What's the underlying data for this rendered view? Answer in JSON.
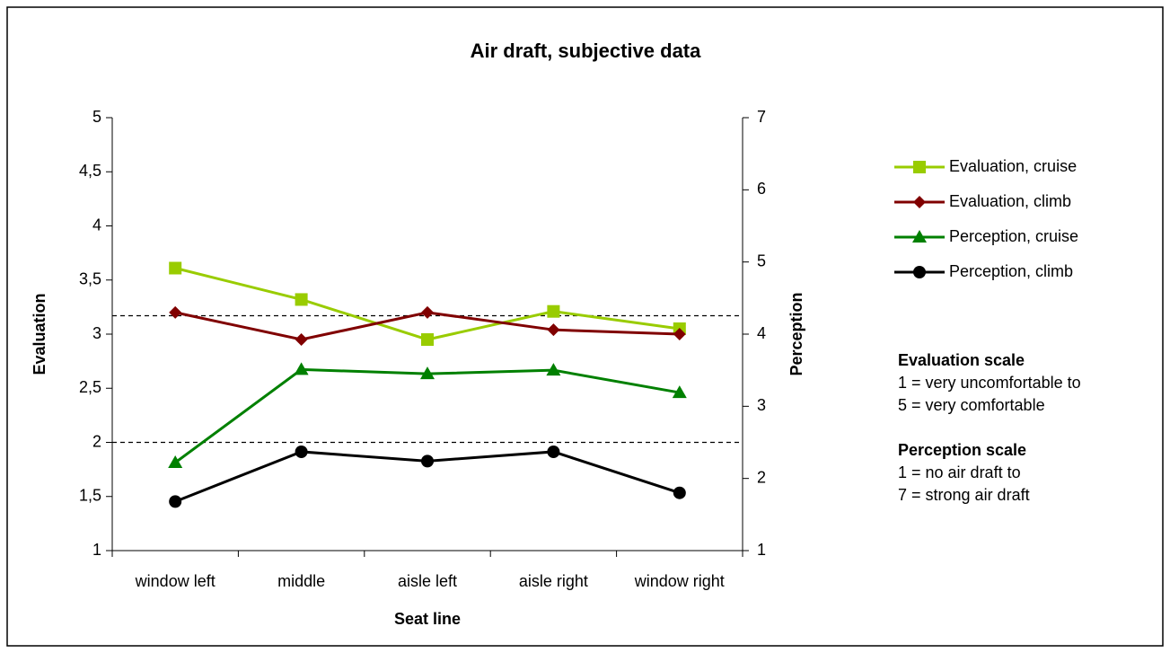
{
  "chart_data": {
    "type": "line",
    "title": "Air draft, subjective data",
    "x_label": "Seat line",
    "y_label": "Evaluation",
    "y2_label": "Perception",
    "categories": [
      "window left",
      "middle",
      "aisle left",
      "aisle right",
      "window right"
    ],
    "series": [
      {
        "name": "Evaluation, cruise",
        "color": "#99cc00",
        "marker": "square",
        "values": [
          3.61,
          3.32,
          2.95,
          3.21,
          3.05
        ]
      },
      {
        "name": "Evaluation, climb",
        "color": "#800000",
        "marker": "diamond",
        "values": [
          3.2,
          2.95,
          3.2,
          3.04,
          3.0
        ]
      },
      {
        "name": "Perception, cruise",
        "color": "#008000",
        "marker": "triangle",
        "axis": "y2",
        "values": [
          2.22,
          3.51,
          3.45,
          3.5,
          3.19
        ]
      },
      {
        "name": "Perception, climb",
        "color": "#000000",
        "marker": "circle",
        "axis": "y2",
        "values": [
          1.68,
          2.37,
          2.24,
          2.37,
          1.8
        ]
      }
    ],
    "ylim": [
      1,
      5
    ],
    "yticks": [
      1,
      {
        "value": 1.5,
        "label": "1,5"
      },
      2,
      {
        "value": 2.5,
        "label": "2,5"
      },
      3,
      {
        "value": 3.5,
        "label": "3,5"
      },
      4,
      {
        "value": 4.5,
        "label": "4,5"
      },
      5
    ],
    "y2lim": [
      1,
      7
    ],
    "y2ticks": [
      1,
      2,
      3,
      4,
      5,
      6,
      7
    ],
    "reference_lines": [
      3.17,
      2
    ],
    "legend": "right",
    "annotations": [
      {
        "title": "Evaluation scale",
        "lines": [
          "1 = very uncomfortable to",
          "5 = very comfortable"
        ]
      },
      {
        "title": "Perception scale",
        "lines": [
          "1 = no air draft to",
          "7 = strong air draft"
        ]
      }
    ]
  }
}
